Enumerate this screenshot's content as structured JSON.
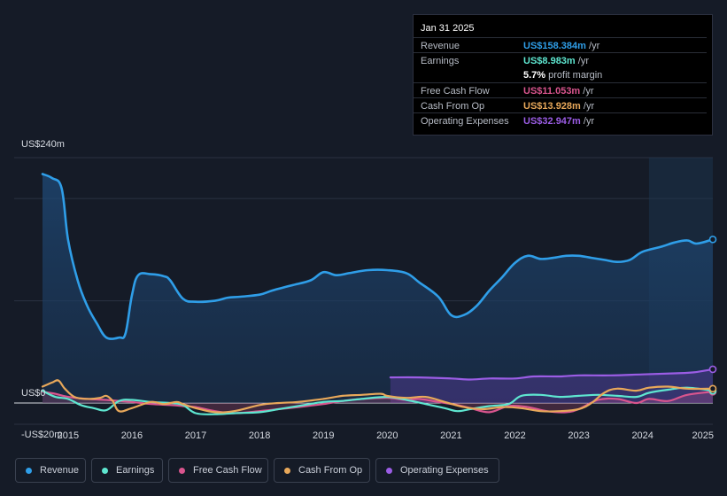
{
  "tooltip": {
    "date": "Jan 31 2025",
    "rows": [
      {
        "label": "Revenue",
        "value": "US$158.384m",
        "unit": "/yr",
        "color": "#2f9ee8"
      },
      {
        "label": "Earnings",
        "value": "US$8.983m",
        "unit": "/yr",
        "color": "#5ee6d0"
      },
      {
        "label": "",
        "value": "5.7%",
        "unit": "profit margin",
        "color": "#ffffff"
      },
      {
        "label": "Free Cash Flow",
        "value": "US$11.053m",
        "unit": "/yr",
        "color": "#d9558e"
      },
      {
        "label": "Cash From Op",
        "value": "US$13.928m",
        "unit": "/yr",
        "color": "#e8a85a"
      },
      {
        "label": "Operating Expenses",
        "value": "US$32.947m",
        "unit": "/yr",
        "color": "#9b5de5"
      }
    ]
  },
  "legend": [
    {
      "label": "Revenue",
      "color": "#2f9ee8"
    },
    {
      "label": "Earnings",
      "color": "#5ee6d0"
    },
    {
      "label": "Free Cash Flow",
      "color": "#d9558e"
    },
    {
      "label": "Cash From Op",
      "color": "#e8a85a"
    },
    {
      "label": "Operating Expenses",
      "color": "#9b5de5"
    }
  ],
  "chart_data": {
    "type": "line",
    "title": "",
    "ylim": [
      -20,
      240
    ],
    "y_tick_labels": [
      "US$240m",
      "US$0",
      "-US$20m"
    ],
    "x_tick_labels": [
      "2015",
      "2016",
      "2017",
      "2018",
      "2019",
      "2020",
      "2021",
      "2022",
      "2023",
      "2024",
      "2025"
    ],
    "xlim": [
      2014.6,
      2025.1
    ],
    "forecast_shade_start": 2024.1,
    "series": [
      {
        "name": "Revenue",
        "color": "#2f9ee8",
        "fill": true,
        "x": [
          2014.6,
          2014.75,
          2014.9,
          2015.0,
          2015.15,
          2015.3,
          2015.45,
          2015.6,
          2015.8,
          2015.9,
          2016.0,
          2016.1,
          2016.3,
          2016.5,
          2016.6,
          2016.8,
          2017.0,
          2017.3,
          2017.5,
          2017.7,
          2018.0,
          2018.2,
          2018.5,
          2018.8,
          2019.0,
          2019.2,
          2019.4,
          2019.7,
          2020.0,
          2020.3,
          2020.5,
          2020.8,
          2021.0,
          2021.2,
          2021.4,
          2021.6,
          2021.8,
          2022.0,
          2022.2,
          2022.4,
          2022.6,
          2022.8,
          2023.0,
          2023.2,
          2023.4,
          2023.6,
          2023.8,
          2024.0,
          2024.3,
          2024.5,
          2024.7,
          2024.85,
          2025.1
        ],
        "y": [
          224,
          220,
          210,
          160,
          120,
          95,
          78,
          64,
          64,
          68,
          105,
          125,
          126,
          124,
          120,
          102,
          99,
          100,
          103,
          104,
          106,
          110,
          115,
          120,
          128,
          125,
          127,
          130,
          130,
          127,
          118,
          104,
          86,
          86,
          95,
          110,
          123,
          137,
          144,
          141,
          142,
          144,
          144,
          142,
          140,
          138,
          140,
          148,
          153,
          157,
          159,
          156,
          160
        ]
      },
      {
        "name": "Earnings",
        "color": "#5ee6d0",
        "fill": false,
        "x": [
          2014.6,
          2014.8,
          2015.0,
          2015.2,
          2015.4,
          2015.6,
          2015.8,
          2016.0,
          2016.3,
          2016.6,
          2016.8,
          2017.0,
          2017.3,
          2017.6,
          2018.0,
          2018.3,
          2018.6,
          2019.0,
          2019.3,
          2019.6,
          2020.0,
          2020.3,
          2020.6,
          2020.9,
          2021.1,
          2021.3,
          2021.6,
          2021.9,
          2022.1,
          2022.4,
          2022.7,
          2023.0,
          2023.3,
          2023.6,
          2023.9,
          2024.1,
          2024.4,
          2024.7,
          2025.1
        ],
        "y": [
          12,
          6,
          4,
          -2,
          -5,
          -7,
          2,
          3,
          1,
          0,
          -2,
          -10,
          -11,
          -10,
          -9,
          -6,
          -3,
          1,
          2,
          4,
          6,
          3,
          -1,
          -5,
          -8,
          -6,
          -3,
          -1,
          7,
          8,
          6,
          7,
          8,
          7,
          6,
          10,
          13,
          15,
          12
        ]
      },
      {
        "name": "Free Cash Flow",
        "color": "#d9558e",
        "fill": true,
        "x": [
          2014.6,
          2014.8,
          2015.0,
          2015.3,
          2015.6,
          2015.8,
          2016.0,
          2016.3,
          2016.6,
          2016.8,
          2017.0,
          2017.3,
          2017.6,
          2018.0,
          2018.3,
          2018.6,
          2019.0,
          2019.3,
          2019.6,
          2020.0,
          2020.3,
          2020.5,
          2020.8,
          2021.1,
          2021.3,
          2021.6,
          2021.9,
          2022.2,
          2022.5,
          2022.8,
          2023.0,
          2023.3,
          2023.6,
          2023.9,
          2024.1,
          2024.4,
          2024.7,
          2025.1
        ],
        "y": [
          11,
          9,
          6,
          4,
          3,
          2,
          1,
          -1,
          -2,
          -3,
          -4,
          -8,
          -10,
          -8,
          -6,
          -4,
          -1,
          2,
          4,
          5,
          3,
          4,
          1,
          -2,
          -5,
          -9,
          -3,
          -4,
          -8,
          -9,
          -6,
          3,
          4,
          0,
          4,
          2,
          8,
          11
        ]
      },
      {
        "name": "Cash From Op",
        "color": "#e8a85a",
        "fill": false,
        "x": [
          2014.6,
          2014.75,
          2014.85,
          2014.95,
          2015.1,
          2015.3,
          2015.5,
          2015.6,
          2015.7,
          2015.8,
          2016.0,
          2016.3,
          2016.5,
          2016.7,
          2016.8,
          2017.0,
          2017.3,
          2017.6,
          2018.0,
          2018.3,
          2018.6,
          2019.0,
          2019.3,
          2019.6,
          2019.9,
          2020.0,
          2020.3,
          2020.6,
          2020.9,
          2021.2,
          2021.5,
          2021.8,
          2022.1,
          2022.4,
          2022.7,
          2023.0,
          2023.2,
          2023.4,
          2023.6,
          2023.9,
          2024.1,
          2024.4,
          2024.7,
          2025.1
        ],
        "y": [
          16,
          20,
          22,
          14,
          6,
          4,
          5,
          7,
          2,
          -8,
          -5,
          1,
          -1,
          1,
          -1,
          -5,
          -9,
          -8,
          -2,
          0,
          1,
          4,
          7,
          8,
          9,
          7,
          5,
          6,
          1,
          -4,
          -6,
          -4,
          -5,
          -8,
          -8,
          -6,
          0,
          10,
          14,
          12,
          15,
          16,
          14,
          14
        ]
      },
      {
        "name": "Operating Expenses",
        "color": "#9b5de5",
        "fill": true,
        "x": [
          2020.05,
          2020.5,
          2021.0,
          2021.3,
          2021.6,
          2022.0,
          2022.3,
          2022.7,
          2023.0,
          2023.5,
          2024.0,
          2024.5,
          2024.8,
          2025.1
        ],
        "y": [
          25,
          25,
          24,
          23,
          24,
          24,
          26,
          26,
          27,
          27,
          28,
          29,
          30,
          33
        ]
      }
    ]
  }
}
